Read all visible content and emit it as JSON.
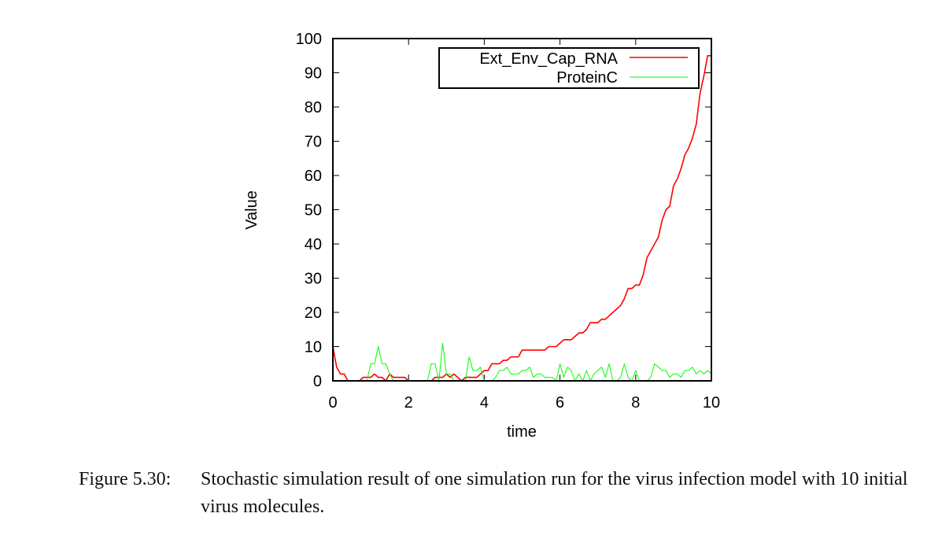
{
  "chart_data": {
    "type": "line",
    "xlabel": "time",
    "ylabel": "Value",
    "xlim": [
      0,
      10
    ],
    "ylim": [
      0,
      100
    ],
    "xticks": [
      0,
      2,
      4,
      6,
      8,
      10
    ],
    "yticks": [
      0,
      10,
      20,
      30,
      40,
      50,
      60,
      70,
      80,
      90,
      100
    ],
    "grid": false,
    "legend_position": "top-right",
    "series": [
      {
        "name": "Ext_Env_Cap_RNA",
        "color": "#ff0000",
        "x": [
          0,
          0.1,
          0.2,
          0.3,
          0.4,
          0.5,
          0.6,
          0.7,
          0.8,
          0.9,
          1.0,
          1.1,
          1.2,
          1.3,
          1.4,
          1.5,
          1.6,
          1.7,
          1.8,
          1.9,
          2.0,
          2.1,
          2.2,
          2.3,
          2.4,
          2.5,
          2.6,
          2.7,
          2.8,
          2.9,
          3.0,
          3.1,
          3.2,
          3.3,
          3.4,
          3.5,
          3.6,
          3.7,
          3.8,
          3.9,
          4.0,
          4.1,
          4.2,
          4.3,
          4.4,
          4.5,
          4.6,
          4.7,
          4.8,
          4.9,
          5.0,
          5.1,
          5.2,
          5.3,
          5.4,
          5.5,
          5.6,
          5.7,
          5.8,
          5.9,
          6.0,
          6.1,
          6.2,
          6.3,
          6.4,
          6.5,
          6.6,
          6.7,
          6.8,
          6.9,
          7.0,
          7.1,
          7.2,
          7.3,
          7.4,
          7.5,
          7.6,
          7.7,
          7.8,
          7.9,
          8.0,
          8.1,
          8.2,
          8.3,
          8.4,
          8.5,
          8.6,
          8.7,
          8.8,
          8.9,
          9.0,
          9.1,
          9.2,
          9.3,
          9.4,
          9.5,
          9.6,
          9.7,
          9.8,
          9.9,
          10.0
        ],
        "values": [
          10,
          4,
          2,
          2,
          0,
          0,
          0,
          0,
          1,
          1,
          1,
          2,
          1,
          1,
          0,
          2,
          1,
          1,
          1,
          1,
          0,
          0,
          0,
          0,
          0,
          0,
          0,
          1,
          1,
          1,
          2,
          1,
          2,
          1,
          0,
          1,
          1,
          1,
          1,
          2,
          3,
          3,
          5,
          5,
          5,
          6,
          6,
          7,
          7,
          7,
          9,
          9,
          9,
          9,
          9,
          9,
          9,
          10,
          10,
          10,
          11,
          12,
          12,
          12,
          13,
          14,
          14,
          15,
          17,
          17,
          17,
          18,
          18,
          19,
          20,
          21,
          22,
          24,
          27,
          27,
          28,
          28,
          31,
          36,
          38,
          40,
          42,
          47,
          50,
          51,
          57,
          59,
          62,
          66,
          68,
          71,
          75,
          84,
          89,
          95,
          95
        ]
      },
      {
        "name": "ProteinC",
        "color": "#00ff00",
        "x": [
          0,
          0.1,
          0.2,
          0.3,
          0.4,
          0.5,
          0.6,
          0.7,
          0.8,
          0.9,
          1.0,
          1.1,
          1.2,
          1.3,
          1.4,
          1.5,
          1.6,
          1.7,
          1.8,
          1.9,
          2.0,
          2.1,
          2.2,
          2.3,
          2.4,
          2.5,
          2.6,
          2.7,
          2.8,
          2.9,
          3.0,
          3.1,
          3.2,
          3.3,
          3.4,
          3.5,
          3.6,
          3.7,
          3.8,
          3.9,
          4.0,
          4.1,
          4.2,
          4.3,
          4.4,
          4.5,
          4.6,
          4.7,
          4.8,
          4.9,
          5.0,
          5.1,
          5.2,
          5.3,
          5.4,
          5.5,
          5.6,
          5.7,
          5.8,
          5.9,
          6.0,
          6.1,
          6.2,
          6.3,
          6.4,
          6.5,
          6.6,
          6.7,
          6.8,
          6.9,
          7.0,
          7.1,
          7.2,
          7.3,
          7.4,
          7.5,
          7.6,
          7.7,
          7.8,
          7.9,
          8.0,
          8.1,
          8.2,
          8.3,
          8.4,
          8.5,
          8.6,
          8.7,
          8.8,
          8.9,
          9.0,
          9.1,
          9.2,
          9.3,
          9.4,
          9.5,
          9.6,
          9.7,
          9.8,
          9.9,
          10.0
        ],
        "values": [
          0,
          0,
          0,
          0,
          0,
          0,
          0,
          0,
          0,
          0,
          5,
          5,
          10,
          5,
          5,
          2,
          0,
          0,
          0,
          0,
          0,
          0,
          0,
          0,
          0,
          0,
          5,
          5,
          0,
          11,
          2,
          2,
          0,
          0,
          0,
          0,
          7,
          3,
          3,
          4,
          0,
          0,
          0,
          1,
          3,
          3,
          4,
          2,
          2,
          2,
          3,
          3,
          4,
          1,
          2,
          2,
          1,
          1,
          1,
          0,
          5,
          1,
          4,
          3,
          0,
          2,
          0,
          3,
          0,
          2,
          3,
          4,
          1,
          5,
          0,
          0,
          1,
          5,
          1,
          0,
          3,
          0,
          0,
          0,
          1,
          5,
          4,
          3,
          3,
          1,
          2,
          2,
          1,
          3,
          3,
          4,
          2,
          3,
          2,
          3,
          2
        ]
      }
    ]
  },
  "caption": {
    "label": "Figure 5.30:",
    "text": "Stochastic simulation result of one simulation run for the virus infection model with 10 initial virus molecules."
  }
}
